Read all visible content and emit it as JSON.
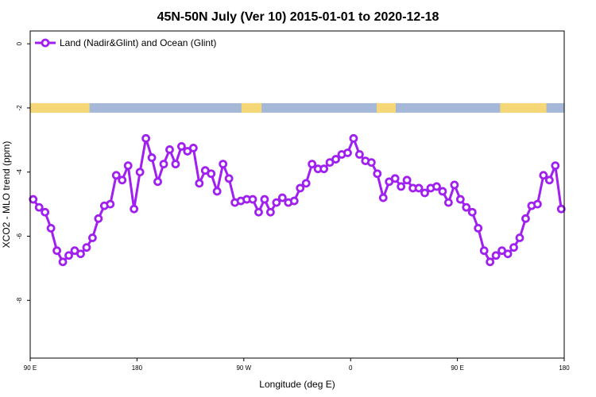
{
  "chart_data": {
    "type": "line",
    "title": "45N-50N July (Ver 10)   2015-01-01 to 2020-12-18",
    "xlabel": "Longitude (deg E)",
    "ylabel": "XCO2 - MLO trend (ppm)",
    "x_tick_labels": [
      "90 E",
      "180",
      "90 W",
      "0",
      "90 E",
      "180"
    ],
    "x_tick_values": [
      90,
      180,
      270,
      360,
      450,
      540
    ],
    "y_tick_values": [
      0,
      -2,
      -4,
      -6,
      -8
    ],
    "y_tick_labels": [
      "0",
      "-2",
      "-4",
      "-6",
      "-8"
    ],
    "xlim": [
      90,
      540
    ],
    "ylim": [
      -9.8,
      0.4
    ],
    "grid": false,
    "legend_placement": "top-left",
    "colors": {
      "series": "#a020f0",
      "land": "#f5d778",
      "ocean": "#a5b8d8"
    },
    "series": [
      {
        "name": "Land (Nadir&Glint) and Ocean (Glint)",
        "x": [
          92.5,
          97.5,
          102.5,
          107.5,
          112.5,
          117.5,
          122.5,
          127.5,
          132.5,
          137.5,
          142.5,
          147.5,
          152.5,
          157.5,
          162.5,
          167.5,
          172.5,
          177.5,
          182.5,
          187.5,
          192.5,
          197.5,
          202.5,
          207.5,
          212.5,
          217.5,
          222.5,
          227.5,
          232.5,
          237.5,
          242.5,
          247.5,
          252.5,
          257.5,
          262.5,
          267.5,
          272.5,
          277.5,
          282.5,
          287.5,
          292.5,
          297.5,
          302.5,
          307.5,
          312.5,
          317.5,
          322.5,
          327.5,
          332.5,
          337.5,
          342.5,
          347.5,
          352.5,
          357.5,
          362.5,
          367.5,
          372.5,
          377.5,
          382.5,
          387.5,
          392.5,
          397.5,
          402.5,
          407.5,
          412.5,
          417.5,
          422.5,
          427.5,
          432.5,
          437.5,
          442.5,
          447.5,
          452.5,
          457.5,
          462.5,
          467.5,
          472.5,
          477.5,
          482.5,
          487.5,
          492.5,
          497.5,
          502.5,
          507.5,
          512.5,
          517.5,
          522.5,
          527.5,
          532.5,
          537.5
        ],
        "y": [
          -4.85,
          -5.1,
          -5.25,
          -5.75,
          -6.45,
          -6.8,
          -6.6,
          -6.45,
          -6.55,
          -6.35,
          -6.05,
          -5.45,
          -5.05,
          -5.0,
          -4.1,
          -4.25,
          -3.8,
          -5.15,
          -4.0,
          -2.95,
          -3.55,
          -4.3,
          -3.75,
          -3.3,
          -3.75,
          -3.2,
          -3.35,
          -3.25,
          -4.35,
          -3.95,
          -4.05,
          -4.6,
          -3.75,
          -4.2,
          -4.95,
          -4.9,
          -4.85,
          -4.85,
          -5.25,
          -4.85,
          -5.25,
          -4.95,
          -4.8,
          -4.95,
          -4.9,
          -4.5,
          -4.35,
          -3.75,
          -3.9,
          -3.9,
          -3.7,
          -3.6,
          -3.45,
          -3.4,
          -2.95,
          -3.45,
          -3.65,
          -3.7,
          -4.05,
          -4.8,
          -4.3,
          -4.2,
          -4.45,
          -4.25,
          -4.5,
          -4.5,
          -4.65,
          -4.5,
          -4.45,
          -4.6,
          -4.95,
          -4.4,
          -4.85,
          -5.1,
          -5.25,
          -5.75,
          -6.45,
          -6.8,
          -6.6,
          -6.45,
          -6.55,
          -6.35,
          -6.05,
          -5.45,
          -5.05,
          -5.0,
          -4.1,
          -4.25,
          -3.8,
          -5.15
        ]
      }
    ],
    "land_mask": {
      "type": "land-ocean band along y = -2",
      "land_intervals": [
        [
          90,
          140
        ],
        [
          268,
          285
        ],
        [
          382,
          398
        ],
        [
          486,
          525
        ]
      ]
    }
  }
}
